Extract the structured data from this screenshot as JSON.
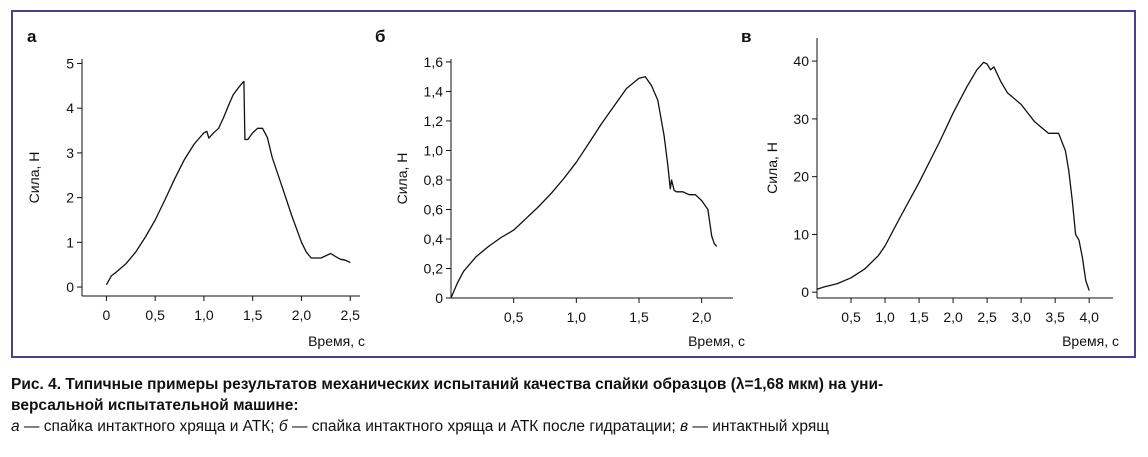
{
  "caption": {
    "line1": "Рис. 4. Типичные примеры результатов механических испытаний качества спайки образцов (λ=1,68 мкм) на уни-",
    "line2": "версальной испытательной машине:",
    "legend_a_letter": "а",
    "legend_a_text": " — спайка интактного хряща и АТК; ",
    "legend_b_letter": "б",
    "legend_b_text": " — спайка интактного хряща и АТК после гидратации; ",
    "legend_c_letter": "в",
    "legend_c_text": " — интактный хрящ"
  },
  "chart_data": [
    {
      "panel_label": "а",
      "type": "line",
      "xlabel": "Время, с",
      "ylabel": "Сила, Н",
      "xlim": [
        -0.25,
        2.6
      ],
      "ylim": [
        -0.2,
        5.1
      ],
      "xticks": [
        0,
        0.5,
        1.0,
        1.5,
        2.0,
        2.5
      ],
      "xtick_labels": [
        "0",
        "0,5",
        "1,0",
        "1,5",
        "2,0",
        "2,5"
      ],
      "yticks": [
        0,
        1,
        2,
        3,
        4,
        5
      ],
      "ytick_labels": [
        "0",
        "1",
        "2",
        "3",
        "4",
        "5"
      ],
      "series": [
        {
          "x": [
            0.0,
            0.05,
            0.1,
            0.2,
            0.3,
            0.4,
            0.5,
            0.6,
            0.7,
            0.8,
            0.9,
            1.0,
            1.03,
            1.05,
            1.1,
            1.15,
            1.2,
            1.25,
            1.3,
            1.35,
            1.4,
            1.41,
            1.42,
            1.45,
            1.5,
            1.55,
            1.6,
            1.65,
            1.7,
            1.8,
            1.9,
            2.0,
            2.05,
            2.1,
            2.2,
            2.3,
            2.35,
            2.4,
            2.45,
            2.5
          ],
          "y": [
            0.05,
            0.25,
            0.33,
            0.52,
            0.78,
            1.12,
            1.5,
            1.95,
            2.42,
            2.85,
            3.2,
            3.45,
            3.48,
            3.33,
            3.45,
            3.55,
            3.78,
            4.05,
            4.3,
            4.45,
            4.58,
            4.6,
            3.3,
            3.3,
            3.45,
            3.55,
            3.55,
            3.35,
            2.9,
            2.25,
            1.6,
            1.0,
            0.78,
            0.65,
            0.65,
            0.75,
            0.68,
            0.62,
            0.6,
            0.55
          ]
        }
      ]
    },
    {
      "panel_label": "б",
      "type": "line",
      "xlabel": "Время, с",
      "ylabel": "Сила, Н",
      "xlim": [
        0,
        2.25
      ],
      "ylim": [
        0,
        1.62
      ],
      "xticks": [
        0.5,
        1.0,
        1.5,
        2.0
      ],
      "xtick_labels": [
        "0,5",
        "1,0",
        "1,5",
        "2,0"
      ],
      "yticks": [
        0,
        0.2,
        0.4,
        0.6,
        0.8,
        1.0,
        1.2,
        1.4,
        1.6
      ],
      "ytick_labels": [
        "0",
        "0,2",
        "0,4",
        "0,6",
        "0,8",
        "1,0",
        "1,2",
        "1,4",
        "1,6"
      ],
      "series": [
        {
          "x": [
            0.0,
            0.05,
            0.1,
            0.2,
            0.3,
            0.4,
            0.5,
            0.6,
            0.7,
            0.8,
            0.9,
            1.0,
            1.1,
            1.2,
            1.3,
            1.4,
            1.5,
            1.55,
            1.6,
            1.65,
            1.7,
            1.73,
            1.75,
            1.76,
            1.78,
            1.8,
            1.85,
            1.9,
            1.95,
            2.0,
            2.05,
            2.08,
            2.1,
            2.12
          ],
          "y": [
            0.0,
            0.1,
            0.18,
            0.28,
            0.35,
            0.41,
            0.46,
            0.54,
            0.62,
            0.71,
            0.81,
            0.92,
            1.05,
            1.18,
            1.3,
            1.42,
            1.49,
            1.5,
            1.44,
            1.34,
            1.1,
            0.9,
            0.74,
            0.8,
            0.73,
            0.72,
            0.72,
            0.7,
            0.7,
            0.66,
            0.6,
            0.42,
            0.37,
            0.35
          ]
        }
      ]
    },
    {
      "panel_label": "в",
      "type": "line",
      "xlabel": "Время, с",
      "ylabel": "Сила, Н",
      "xlim": [
        0,
        4.35
      ],
      "ylim": [
        -1,
        44
      ],
      "xticks": [
        0.5,
        1.0,
        1.5,
        2.0,
        2.5,
        3.0,
        3.5,
        4.0
      ],
      "xtick_labels": [
        "0,5",
        "1,0",
        "1,5",
        "2,0",
        "2,5",
        "3,0",
        "3,5",
        "4,0"
      ],
      "yticks": [
        0,
        10,
        20,
        30,
        40
      ],
      "ytick_labels": [
        "0",
        "10",
        "20",
        "30",
        "40"
      ],
      "series": [
        {
          "x": [
            0.0,
            0.1,
            0.3,
            0.5,
            0.7,
            0.9,
            1.0,
            1.2,
            1.5,
            1.8,
            2.0,
            2.2,
            2.35,
            2.45,
            2.5,
            2.55,
            2.6,
            2.7,
            2.8,
            3.0,
            3.1,
            3.2,
            3.4,
            3.55,
            3.6,
            3.65,
            3.7,
            3.75,
            3.8,
            3.85,
            3.9,
            3.95,
            4.0
          ],
          "y": [
            0.5,
            0.9,
            1.5,
            2.5,
            4.0,
            6.3,
            8.0,
            12.5,
            19.0,
            26.0,
            31.0,
            35.5,
            38.5,
            39.8,
            39.5,
            38.5,
            39.0,
            36.5,
            34.5,
            32.5,
            31.0,
            29.5,
            27.5,
            27.5,
            26.0,
            24.5,
            21.0,
            16.0,
            10.0,
            9.0,
            6.0,
            2.0,
            0.3
          ]
        }
      ]
    }
  ]
}
